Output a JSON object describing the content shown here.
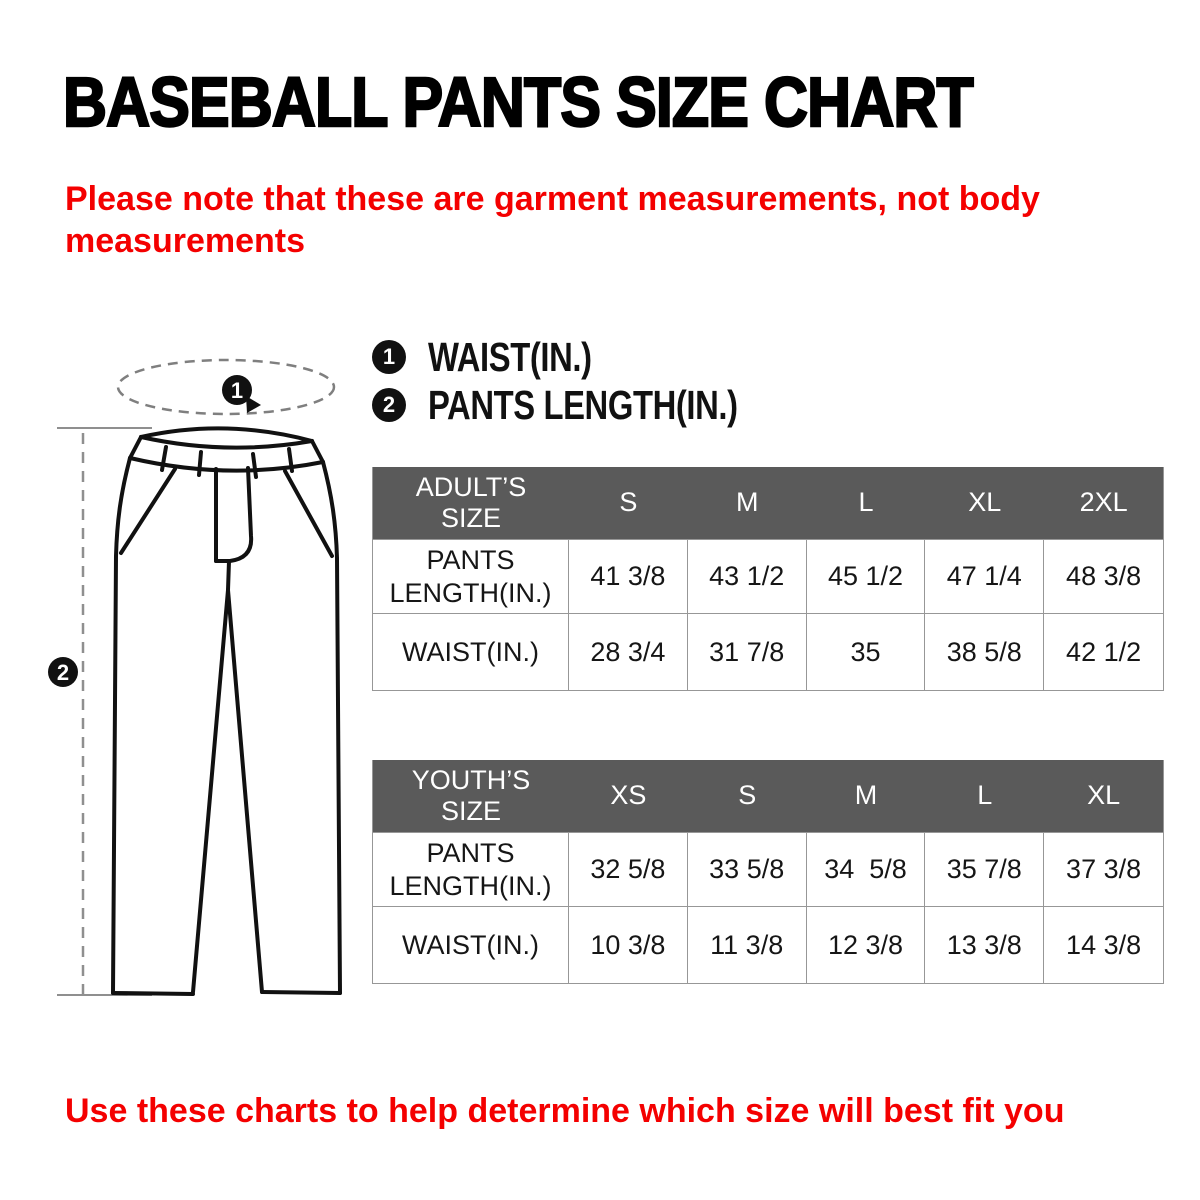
{
  "title": "BASEBALL PANTS SIZE CHART",
  "note_top": "Please note that these are garment measurements, not body measurements",
  "note_bottom": "Use these charts to help determine which size will best fit you",
  "colors": {
    "accent_red": "#f40000",
    "table_header_bg": "#5a5a5a",
    "table_border": "#979797",
    "ink": "#111111",
    "guide_gray": "#8f8f8f"
  },
  "legend": {
    "items": [
      {
        "badge": "1",
        "label": "WAIST(IN.)"
      },
      {
        "badge": "2",
        "label": "PANTS LENGTH(IN.)"
      }
    ]
  },
  "diagram": {
    "badge1": "1",
    "badge2": "2"
  },
  "tables": [
    {
      "name": "adults",
      "header": [
        "ADULT’S SIZE",
        "S",
        "M",
        "L",
        "XL",
        "2XL"
      ],
      "rows": [
        [
          "PANTS LENGTH(IN.)",
          "41 3/8",
          "43 1/2",
          "45 1/2",
          "47 1/4",
          "48 3/8"
        ],
        [
          "WAIST(IN.)",
          "28 3/4",
          "31 7/8",
          "35",
          "38 5/8",
          "42 1/2"
        ]
      ]
    },
    {
      "name": "youths",
      "header": [
        "YOUTH’S SIZE",
        "XS",
        "S",
        "M",
        "L",
        "XL"
      ],
      "rows": [
        [
          "PANTS LENGTH(IN.)",
          "32 5/8",
          "33 5/8",
          "34  5/8",
          "35 7/8",
          "37 3/8"
        ],
        [
          "WAIST(IN.)",
          "10 3/8",
          "11 3/8",
          "12 3/8",
          "13 3/8",
          "14 3/8"
        ]
      ]
    }
  ]
}
